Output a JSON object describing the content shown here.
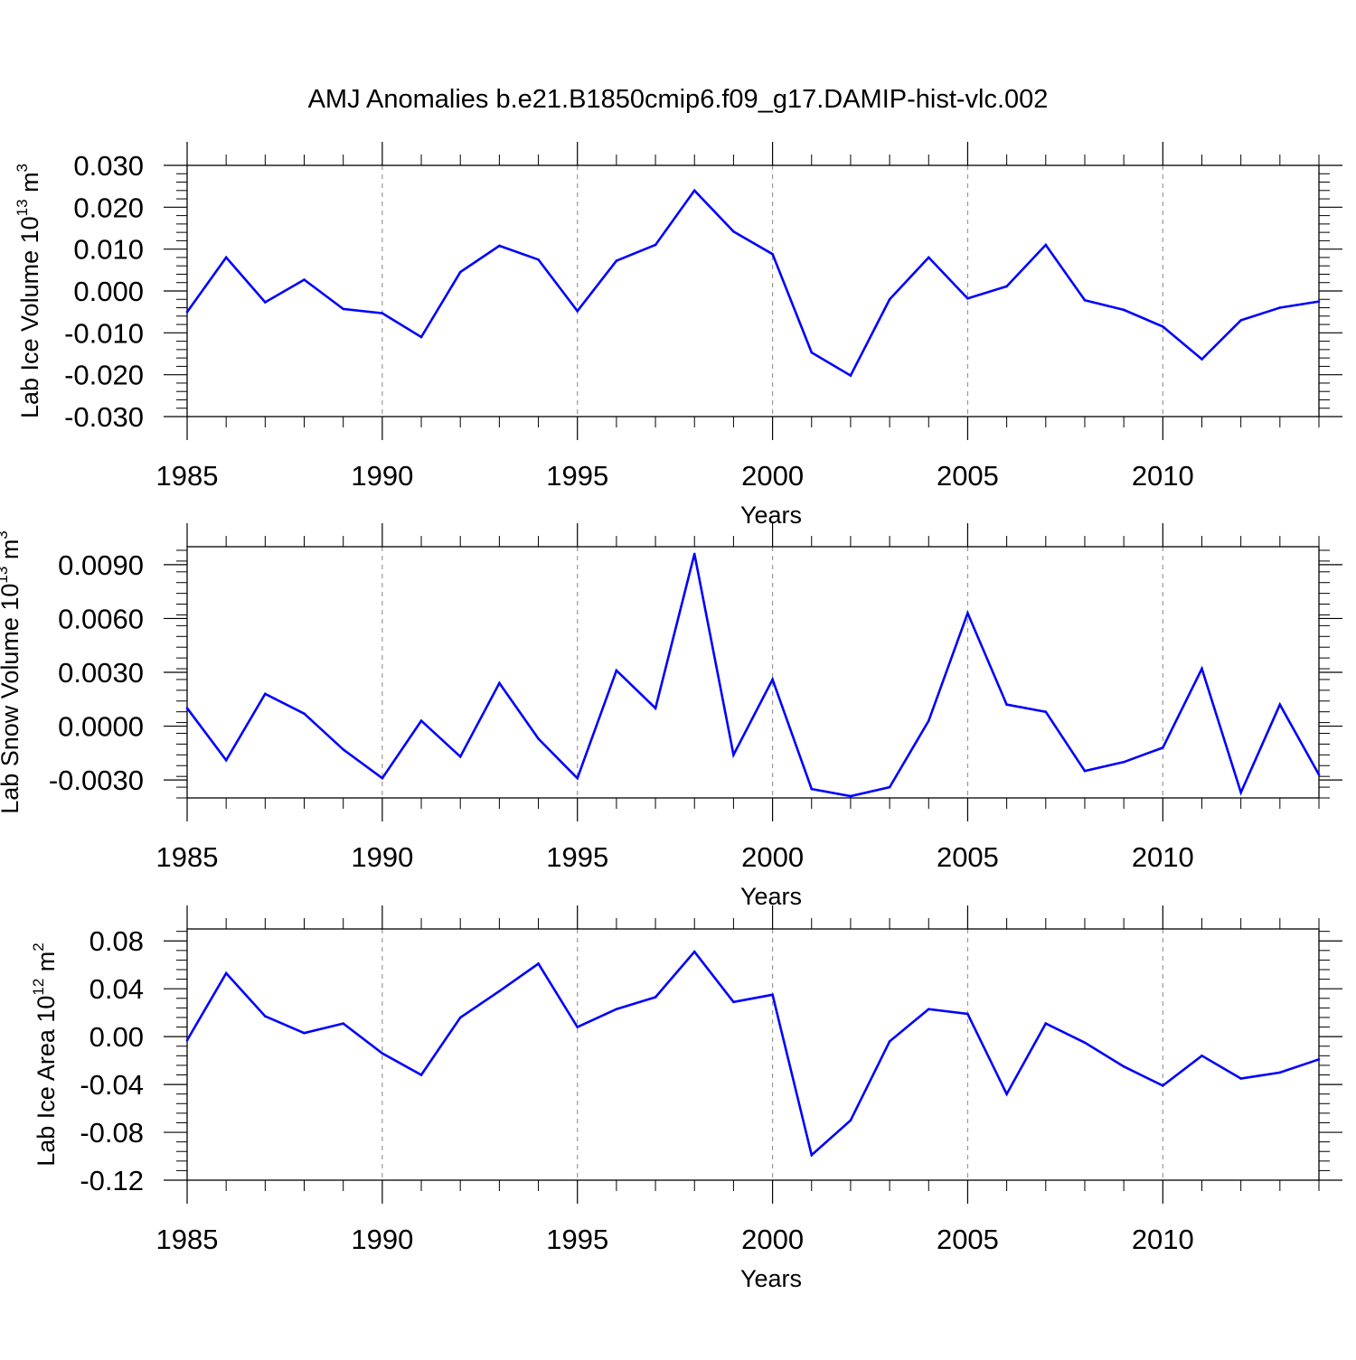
{
  "title": "AMJ Anomalies b.e21.B1850cmip6.f09_g17.DAMIP-hist-vlc.002",
  "line_color": "#0000ff",
  "chart_data": [
    {
      "type": "line",
      "title": "AMJ Anomalies b.e21.B1850cmip6.f09_g17.DAMIP-hist-vlc.002",
      "ylabel_main": "Lab Ice Volume 10",
      "ylabel_exp": "13",
      "ylabel_unit": " m",
      "ylabel_unit_exp": "3",
      "xlabel": "Years",
      "xlim": [
        1985,
        2014
      ],
      "ylim": [
        -0.03,
        0.03
      ],
      "yticks": [
        -0.03,
        -0.02,
        -0.01,
        0.0,
        0.01,
        0.02,
        0.03
      ],
      "ytick_labels": [
        "-0.030",
        "-0.020",
        "-0.010",
        "0.000",
        "0.010",
        "0.020",
        "0.030"
      ],
      "xticks": [
        1985,
        1990,
        1995,
        2000,
        2005,
        2010
      ],
      "xtick_labels": [
        "1985",
        "1990",
        "1995",
        "2000",
        "2005",
        "2010"
      ],
      "gridlines_x": [
        1990,
        1995,
        2000,
        2005,
        2010
      ],
      "x": [
        1985,
        1986,
        1987,
        1988,
        1989,
        1990,
        1991,
        1992,
        1993,
        1994,
        1995,
        1996,
        1997,
        1998,
        1999,
        2000,
        2001,
        2002,
        2003,
        2004,
        2005,
        2006,
        2007,
        2008,
        2009,
        2010,
        2011,
        2012,
        2013,
        2014
      ],
      "values": [
        -0.005,
        0.008,
        -0.0027,
        0.0027,
        -0.0043,
        -0.0053,
        -0.011,
        0.0045,
        0.0108,
        0.0075,
        -0.0048,
        0.0072,
        0.011,
        0.024,
        0.0142,
        0.0088,
        -0.0147,
        -0.0202,
        -0.002,
        0.008,
        -0.0018,
        0.0011,
        0.011,
        -0.0022,
        -0.0045,
        -0.0085,
        -0.0163,
        -0.007,
        -0.004,
        -0.0025
      ]
    },
    {
      "type": "line",
      "ylabel_main": "Lab Snow Volume 10",
      "ylabel_exp": "13",
      "ylabel_unit": " m",
      "ylabel_unit_exp": "3",
      "xlabel": "Years",
      "xlim": [
        1985,
        2014
      ],
      "ylim": [
        -0.004,
        0.01
      ],
      "yticks": [
        -0.003,
        0.0,
        0.003,
        0.006,
        0.009
      ],
      "ytick_labels": [
        "-0.0030",
        "0.0000",
        "0.0030",
        "0.0060",
        "0.0090"
      ],
      "xticks": [
        1985,
        1990,
        1995,
        2000,
        2005,
        2010
      ],
      "xtick_labels": [
        "1985",
        "1990",
        "1995",
        "2000",
        "2005",
        "2010"
      ],
      "gridlines_x": [
        1990,
        1995,
        2000,
        2005,
        2010
      ],
      "x": [
        1985,
        1986,
        1987,
        1988,
        1989,
        1990,
        1991,
        1992,
        1993,
        1994,
        1995,
        1996,
        1997,
        1998,
        1999,
        2000,
        2001,
        2002,
        2003,
        2004,
        2005,
        2006,
        2007,
        2008,
        2009,
        2010,
        2011,
        2012,
        2013,
        2014
      ],
      "values": [
        0.001,
        -0.0019,
        0.0018,
        0.0007,
        -0.0013,
        -0.0029,
        0.0003,
        -0.0017,
        0.0024,
        -0.0007,
        -0.0029,
        0.0031,
        0.001,
        0.0096,
        -0.0016,
        0.0026,
        -0.0035,
        -0.0039,
        -0.0034,
        0.0003,
        0.0063,
        0.0012,
        0.0008,
        -0.0025,
        -0.002,
        -0.0012,
        0.0032,
        -0.0037,
        0.0012,
        -0.0027
      ]
    },
    {
      "type": "line",
      "ylabel_main": "Lab Ice Area 10",
      "ylabel_exp": "12",
      "ylabel_unit": " m",
      "ylabel_unit_exp": "2",
      "xlabel": "Years",
      "xlim": [
        1985,
        2014
      ],
      "ylim": [
        -0.12,
        0.09
      ],
      "yticks": [
        -0.12,
        -0.08,
        -0.04,
        0.0,
        0.04,
        0.08
      ],
      "ytick_labels": [
        "-0.12",
        "-0.08",
        "-0.04",
        "0.00",
        "0.04",
        "0.08"
      ],
      "xticks": [
        1985,
        1990,
        1995,
        2000,
        2005,
        2010
      ],
      "xtick_labels": [
        "1985",
        "1990",
        "1995",
        "2000",
        "2005",
        "2010"
      ],
      "gridlines_x": [
        1990,
        1995,
        2000,
        2005,
        2010
      ],
      "x": [
        1985,
        1986,
        1987,
        1988,
        1989,
        1990,
        1991,
        1992,
        1993,
        1994,
        1995,
        1996,
        1997,
        1998,
        1999,
        2000,
        2001,
        2002,
        2003,
        2004,
        2005,
        2006,
        2007,
        2008,
        2009,
        2010,
        2011,
        2012,
        2013,
        2014
      ],
      "values": [
        -0.003,
        0.053,
        0.017,
        0.003,
        0.011,
        -0.014,
        -0.032,
        0.016,
        0.038,
        0.061,
        0.008,
        0.023,
        0.033,
        0.071,
        0.029,
        0.035,
        -0.099,
        -0.07,
        -0.004,
        0.023,
        0.019,
        -0.048,
        0.011,
        -0.005,
        -0.025,
        -0.041,
        -0.016,
        -0.035,
        -0.03,
        -0.019
      ]
    }
  ]
}
